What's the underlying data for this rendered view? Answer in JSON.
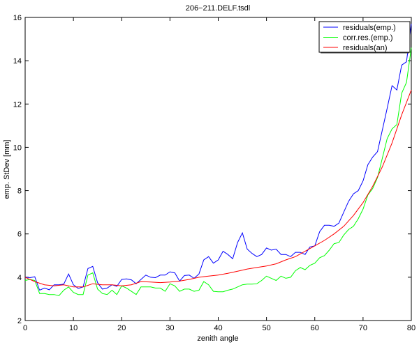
{
  "chart_data": {
    "type": "line",
    "title": "206−211.DELF.tsdl",
    "xlabel": "zenith angle",
    "ylabel": "emp. StDev [mm]",
    "xlim": [
      0,
      80
    ],
    "ylim": [
      2,
      16
    ],
    "xticks": [
      0,
      10,
      20,
      30,
      40,
      50,
      60,
      70,
      80
    ],
    "yticks": [
      2,
      4,
      6,
      8,
      10,
      12,
      14,
      16
    ],
    "grid": false,
    "legend_position": "top-right",
    "series": [
      {
        "name": "residuals(emp.)",
        "color": "#0000ff",
        "x": [
          0,
          1,
          2,
          3,
          4,
          5,
          6,
          7,
          8,
          9,
          10,
          11,
          12,
          13,
          14,
          15,
          16,
          17,
          18,
          19,
          20,
          21,
          22,
          23,
          24,
          25,
          26,
          27,
          28,
          29,
          30,
          31,
          32,
          33,
          34,
          35,
          36,
          37,
          38,
          39,
          40,
          41,
          42,
          43,
          44,
          45,
          46,
          47,
          48,
          49,
          50,
          51,
          52,
          53,
          54,
          55,
          56,
          57,
          58,
          59,
          60,
          61,
          62,
          63,
          64,
          65,
          66,
          67,
          68,
          69,
          70,
          71,
          72,
          73,
          74,
          75,
          76,
          77,
          78,
          79,
          80
        ],
        "y": [
          4.0,
          3.98,
          4.02,
          3.4,
          3.5,
          3.42,
          3.65,
          3.65,
          3.68,
          4.15,
          3.65,
          3.48,
          3.55,
          4.4,
          4.5,
          3.75,
          3.45,
          3.5,
          3.65,
          3.58,
          3.9,
          3.92,
          3.88,
          3.7,
          3.9,
          4.1,
          4.0,
          3.98,
          4.1,
          4.1,
          4.25,
          4.2,
          3.82,
          4.08,
          4.1,
          3.95,
          4.15,
          4.8,
          4.95,
          4.65,
          4.8,
          5.2,
          5.05,
          4.85,
          5.6,
          6.05,
          5.3,
          5.1,
          4.95,
          5.05,
          5.35,
          5.25,
          5.3,
          5.05,
          5.05,
          4.95,
          5.15,
          5.15,
          5.05,
          5.4,
          5.45,
          6.1,
          6.4,
          6.4,
          6.35,
          6.5,
          7.0,
          7.5,
          7.85,
          8.0,
          8.45,
          9.2,
          9.55,
          9.8,
          10.8,
          11.8,
          12.85,
          12.65,
          13.8,
          13.95,
          15.7
        ]
      },
      {
        "name": "corr.res.(emp.)",
        "color": "#00ff00",
        "x": [
          0,
          1,
          2,
          3,
          4,
          5,
          6,
          7,
          8,
          9,
          10,
          11,
          12,
          13,
          14,
          15,
          16,
          17,
          18,
          19,
          20,
          21,
          22,
          23,
          24,
          25,
          26,
          27,
          28,
          29,
          30,
          31,
          32,
          33,
          34,
          35,
          36,
          37,
          38,
          39,
          40,
          41,
          42,
          43,
          44,
          45,
          46,
          47,
          48,
          49,
          50,
          51,
          52,
          53,
          54,
          55,
          56,
          57,
          58,
          59,
          60,
          61,
          62,
          63,
          64,
          65,
          66,
          67,
          68,
          69,
          70,
          71,
          72,
          73,
          74,
          75,
          76,
          77,
          78,
          79,
          80
        ],
        "y": [
          3.85,
          3.9,
          3.85,
          3.25,
          3.25,
          3.2,
          3.2,
          3.15,
          3.4,
          3.55,
          3.3,
          3.2,
          3.2,
          4.1,
          4.2,
          3.45,
          3.25,
          3.2,
          3.4,
          3.2,
          3.6,
          3.5,
          3.35,
          3.2,
          3.55,
          3.55,
          3.55,
          3.5,
          3.5,
          3.35,
          3.7,
          3.6,
          3.35,
          3.45,
          3.45,
          3.35,
          3.4,
          3.8,
          3.65,
          3.35,
          3.33,
          3.33,
          3.4,
          3.45,
          3.55,
          3.65,
          3.68,
          3.68,
          3.7,
          3.85,
          4.05,
          3.95,
          3.85,
          4.05,
          3.95,
          4.0,
          4.3,
          4.45,
          4.35,
          4.55,
          4.65,
          4.9,
          5.0,
          5.25,
          5.55,
          5.6,
          5.95,
          6.2,
          6.35,
          6.7,
          7.15,
          7.8,
          8.1,
          8.6,
          9.5,
          10.4,
          10.85,
          11.05,
          12.5,
          13.0,
          14.6
        ]
      },
      {
        "name": "residuals(an)",
        "color": "#ff0000",
        "x": [
          0,
          2,
          4,
          6,
          8,
          10,
          12,
          14,
          16,
          18,
          20,
          22,
          24,
          26,
          28,
          30,
          32,
          34,
          36,
          38,
          40,
          42,
          44,
          46,
          48,
          50,
          52,
          54,
          56,
          58,
          60,
          62,
          64,
          66,
          68,
          70,
          72,
          74,
          76,
          78,
          80
        ],
        "y": [
          4.0,
          3.8,
          3.65,
          3.6,
          3.65,
          3.55,
          3.55,
          3.7,
          3.65,
          3.65,
          3.6,
          3.65,
          3.8,
          3.78,
          3.75,
          3.78,
          3.82,
          3.9,
          4.0,
          4.05,
          4.1,
          4.18,
          4.28,
          4.38,
          4.45,
          4.52,
          4.62,
          4.8,
          4.95,
          5.2,
          5.45,
          5.7,
          6.0,
          6.35,
          6.85,
          7.45,
          8.2,
          9.1,
          10.2,
          11.5,
          12.65
        ]
      }
    ]
  }
}
